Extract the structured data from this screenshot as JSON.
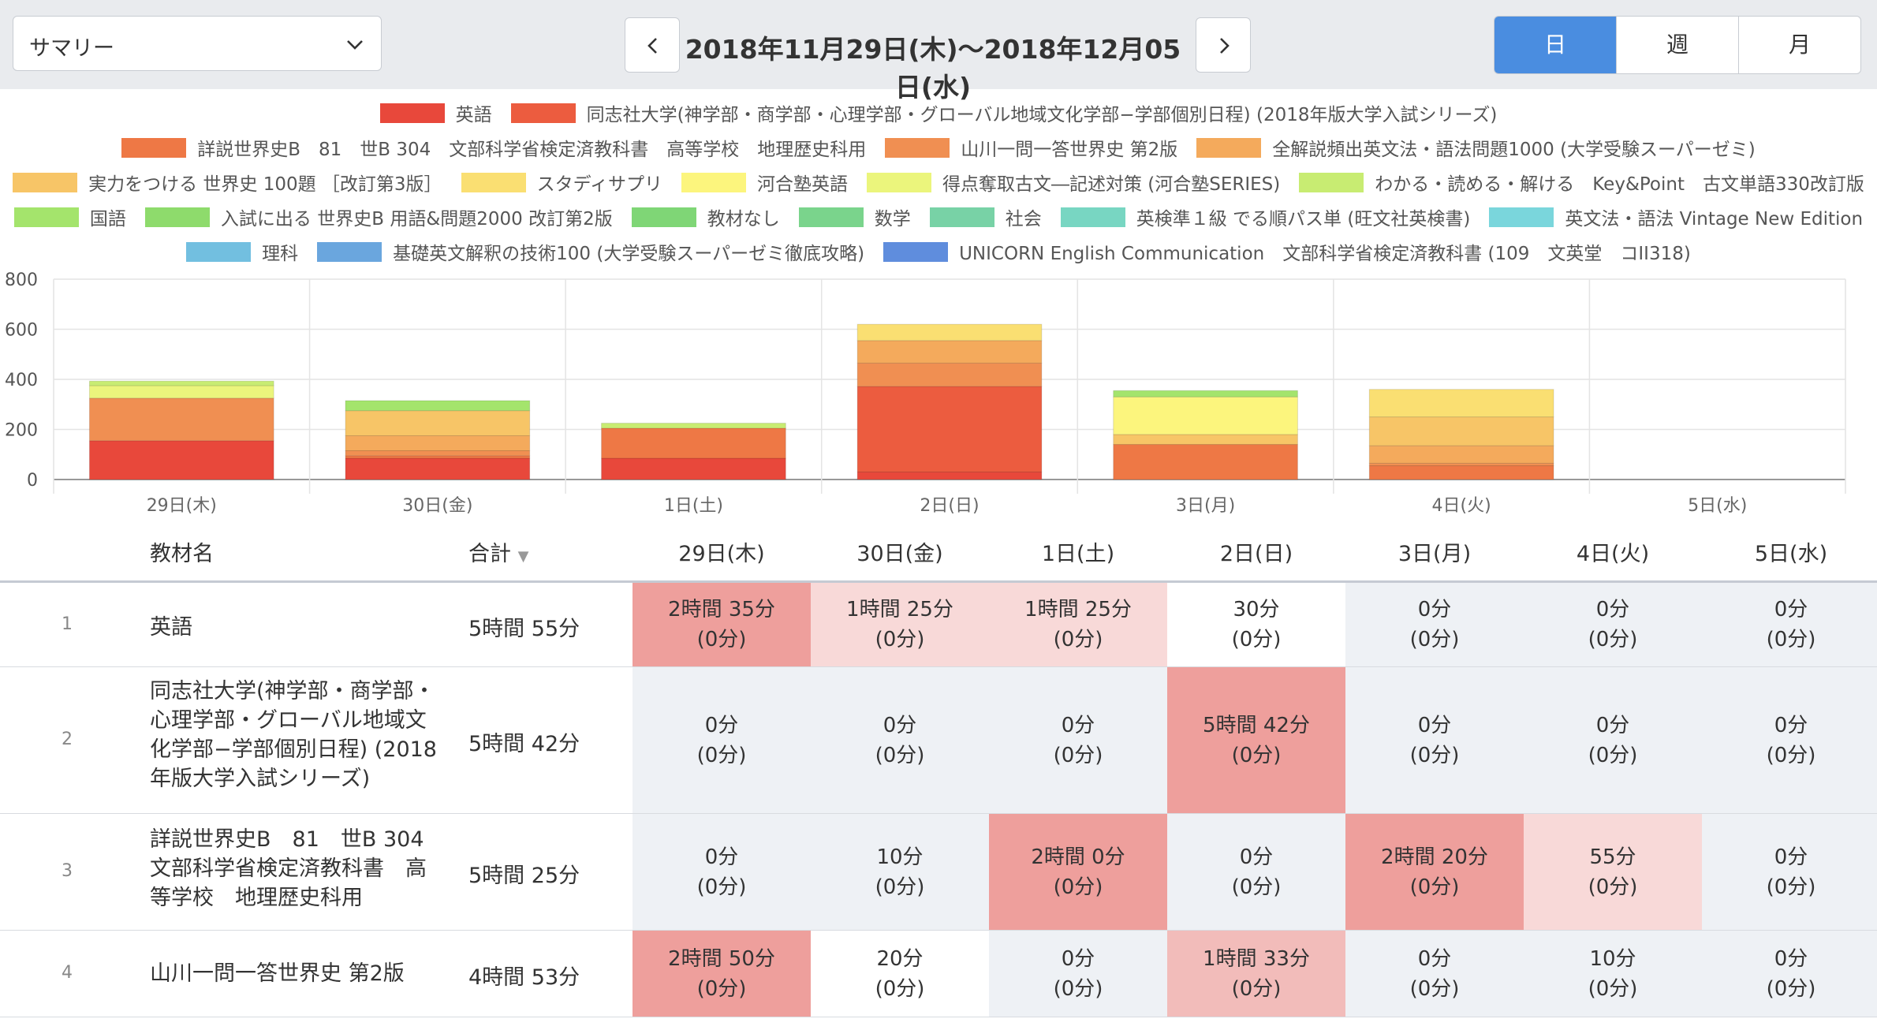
{
  "header": {
    "view_select": "サマリー",
    "date_range": "2018年11月29日(木)〜2018年12月05日(水)",
    "segments": [
      "日",
      "週",
      "月"
    ]
  },
  "legend": [
    {
      "label": "英語",
      "color": "#e8483b"
    },
    {
      "label": "同志社大学(神学部・商学部・心理学部・グローバル地域文化学部−学部個別日程) (2018年版大学入試シリーズ)",
      "color": "#ec5c3f"
    },
    {
      "label": "詳説世界史B　81　世B 304　文部科学省検定済教科書　高等学校　地理歴史科用",
      "color": "#ee7845"
    },
    {
      "label": "山川一問一答世界史 第2版",
      "color": "#f08f52"
    },
    {
      "label": "全解説頻出英文法・語法問題1000 (大学受験スーパーゼミ)",
      "color": "#f4aa5c"
    },
    {
      "label": "実力をつける 世界史 100題 ［改訂第3版］",
      "color": "#f7c567"
    },
    {
      "label": "スタディサプリ",
      "color": "#fadf72"
    },
    {
      "label": "河合塾英語",
      "color": "#fcf57d"
    },
    {
      "label": "得点奪取古文―記述対策 (河合塾SERIES)",
      "color": "#ebf57c"
    },
    {
      "label": "わかる・読める・解ける　Key&Point　古文単語330改訂版",
      "color": "#c8ec72"
    },
    {
      "label": "国語",
      "color": "#a4e46c"
    },
    {
      "label": "入試に出る 世界史B 用語&問題2000 改訂第2版",
      "color": "#8edb6c"
    },
    {
      "label": "教材なし",
      "color": "#7fd676"
    },
    {
      "label": "数学",
      "color": "#7ad48c"
    },
    {
      "label": "社会",
      "color": "#78d2a6"
    },
    {
      "label": "英検準１級 でる順パス単 (旺文社英検書)",
      "color": "#78d6c2"
    },
    {
      "label": "英文法・語法 Vintage New Edition",
      "color": "#7ad6dc"
    },
    {
      "label": "理科",
      "color": "#72bfe0"
    },
    {
      "label": "基礎英文解釈の技術100 (大学受験スーパーゼミ徹底攻略)",
      "color": "#6aa6de"
    },
    {
      "label": "UNICORN English Communication　文部科学省検定済教科書 (109　文英堂　コII318)",
      "color": "#5f8ddd"
    }
  ],
  "chart_data": {
    "type": "bar",
    "stacked": true,
    "categories": [
      "29日(木)",
      "30日(金)",
      "1日(土)",
      "2日(日)",
      "3日(月)",
      "4日(火)",
      "5日(水)"
    ],
    "ylim": [
      0,
      800
    ],
    "yticks": [
      0,
      200,
      400,
      600,
      800
    ],
    "series": [
      {
        "name": "英語",
        "color": "#e8483b",
        "values": [
          155,
          85,
          85,
          30,
          0,
          0,
          0
        ]
      },
      {
        "name": "同志社大学(神学部・商学部・心理学部・グローバル地域文化学部−学部個別日程) (2018年版大学入試シリーズ)",
        "color": "#ec5c3f",
        "values": [
          0,
          0,
          0,
          342,
          0,
          0,
          0
        ]
      },
      {
        "name": "詳説世界史B　81　世B 304　文部科学省検定済教科書　高等学校　地理歴史科用",
        "color": "#ee7845",
        "values": [
          0,
          10,
          120,
          0,
          140,
          55,
          0
        ]
      },
      {
        "name": "山川一問一答世界史 第2版",
        "color": "#f08f52",
        "values": [
          170,
          20,
          0,
          93,
          0,
          10,
          0
        ]
      },
      {
        "name": "全解説頻出英文法・語法問題1000 (大学受験スーパーゼミ)",
        "color": "#f4aa5c",
        "values": [
          0,
          60,
          0,
          90,
          0,
          70,
          0
        ]
      },
      {
        "name": "実力をつける 世界史 100題 ［改訂第3版］",
        "color": "#f7c567",
        "values": [
          0,
          100,
          0,
          0,
          40,
          115,
          0
        ]
      },
      {
        "name": "スタディサプリ",
        "color": "#fadf72",
        "values": [
          0,
          0,
          0,
          65,
          0,
          110,
          0
        ]
      },
      {
        "name": "河合塾英語",
        "color": "#fcf57d",
        "values": [
          0,
          0,
          0,
          0,
          150,
          0,
          0
        ]
      },
      {
        "name": "得点奪取古文―記述対策 (河合塾SERIES)",
        "color": "#ebf57c",
        "values": [
          50,
          0,
          0,
          0,
          0,
          0,
          0
        ]
      },
      {
        "name": "わかる・読める・解ける　Key&Point　古文単語330改訂版",
        "color": "#c8ec72",
        "values": [
          18,
          0,
          20,
          0,
          0,
          0,
          0
        ]
      },
      {
        "name": "国語",
        "color": "#a4e46c",
        "values": [
          0,
          40,
          0,
          0,
          25,
          0,
          0
        ]
      }
    ]
  },
  "table": {
    "headers": {
      "name": "教材名",
      "total": "合計",
      "days": [
        "29日(木)",
        "30日(金)",
        "1日(土)",
        "2日(日)",
        "3日(月)",
        "4日(火)",
        "5日(水)"
      ]
    },
    "rows": [
      {
        "rank": "1",
        "name": "英語",
        "total": "5時間 55分",
        "cells": [
          {
            "t": "2時間 35分",
            "s": "(0分)",
            "lvl": 3
          },
          {
            "t": "1時間 25分",
            "s": "(0分)",
            "lvl": 1
          },
          {
            "t": "1時間 25分",
            "s": "(0分)",
            "lvl": 1
          },
          {
            "t": "30分",
            "s": "(0分)",
            "lvl": 0
          },
          {
            "t": "0分",
            "s": "(0分)",
            "lvl": -1
          },
          {
            "t": "0分",
            "s": "(0分)",
            "lvl": -1
          },
          {
            "t": "0分",
            "s": "(0分)",
            "lvl": -1
          }
        ]
      },
      {
        "rank": "2",
        "name": "同志社大学(神学部・商学部・心理学部・グローバル地域文化学部−学部個別日程) (2018年版大学入試シリーズ)",
        "total": "5時間 42分",
        "cells": [
          {
            "t": "0分",
            "s": "(0分)",
            "lvl": -1
          },
          {
            "t": "0分",
            "s": "(0分)",
            "lvl": -1
          },
          {
            "t": "0分",
            "s": "(0分)",
            "lvl": -1
          },
          {
            "t": "5時間 42分",
            "s": "(0分)",
            "lvl": 3
          },
          {
            "t": "0分",
            "s": "(0分)",
            "lvl": -1
          },
          {
            "t": "0分",
            "s": "(0分)",
            "lvl": -1
          },
          {
            "t": "0分",
            "s": "(0分)",
            "lvl": -1
          }
        ]
      },
      {
        "rank": "3",
        "name": "詳説世界史B　81　世B 304　文部科学省検定済教科書　高等学校　地理歴史科用",
        "total": "5時間 25分",
        "cells": [
          {
            "t": "0分",
            "s": "(0分)",
            "lvl": -1
          },
          {
            "t": "10分",
            "s": "(0分)",
            "lvl": -1
          },
          {
            "t": "2時間 0分",
            "s": "(0分)",
            "lvl": 3
          },
          {
            "t": "0分",
            "s": "(0分)",
            "lvl": -1
          },
          {
            "t": "2時間 20分",
            "s": "(0分)",
            "lvl": 3
          },
          {
            "t": "55分",
            "s": "(0分)",
            "lvl": 1
          },
          {
            "t": "0分",
            "s": "(0分)",
            "lvl": -1
          }
        ]
      },
      {
        "rank": "4",
        "name": "山川一問一答世界史 第2版",
        "total": "4時間 53分",
        "cells": [
          {
            "t": "2時間 50分",
            "s": "(0分)",
            "lvl": 3
          },
          {
            "t": "20分",
            "s": "(0分)",
            "lvl": 0
          },
          {
            "t": "0分",
            "s": "(0分)",
            "lvl": -1
          },
          {
            "t": "1時間 33分",
            "s": "(0分)",
            "lvl": 2
          },
          {
            "t": "0分",
            "s": "(0分)",
            "lvl": -1
          },
          {
            "t": "10分",
            "s": "(0分)",
            "lvl": -1
          },
          {
            "t": "0分",
            "s": "(0分)",
            "lvl": -1
          }
        ]
      }
    ]
  }
}
